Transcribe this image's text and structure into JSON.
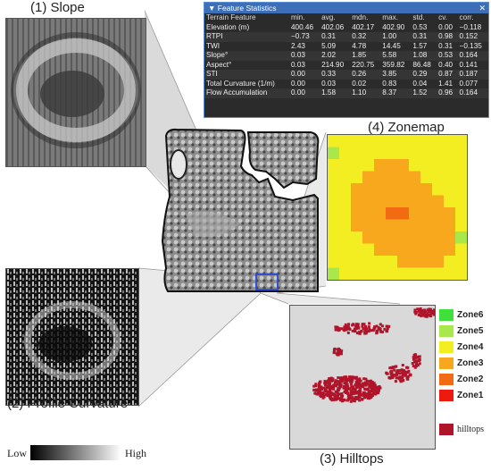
{
  "labels": {
    "slope": "(1) Slope",
    "profile_curvature": "(2) Profile Curvature",
    "hilltops": "(3) Hilltops",
    "zonemap": "(4) Zonemap",
    "scale_low": "Low",
    "scale_high": "High"
  },
  "feature_statistics": {
    "title": "Feature Statistics",
    "collapse_glyph": "▼",
    "close_glyph": "✕",
    "columns": [
      "Terrain Feature",
      "min.",
      "avg.",
      "mdn.",
      "max.",
      "std.",
      "cv.",
      "corr."
    ],
    "rows": [
      [
        "Elevation (m)",
        "400.46",
        "402.06",
        "402.17",
        "402.90",
        "0.53",
        "0.00",
        "−0.118"
      ],
      [
        "RTPI",
        "−0.73",
        "0.31",
        "0.32",
        "1.00",
        "0.31",
        "0.98",
        "0.152"
      ],
      [
        "TWI",
        "2.43",
        "5.09",
        "4.78",
        "14.45",
        "1.57",
        "0.31",
        "−0.135"
      ],
      [
        "Slope°",
        "0.03",
        "2.02",
        "1.85",
        "5.58",
        "1.08",
        "0.53",
        "0.164"
      ],
      [
        "Aspect°",
        "0.03",
        "214.90",
        "220.75",
        "359.82",
        "86.48",
        "0.40",
        "0.141"
      ],
      [
        "STI",
        "0.00",
        "0.33",
        "0.26",
        "3.85",
        "0.29",
        "0.87",
        "0.187"
      ],
      [
        "Total Curvature (1/m)",
        "0.00",
        "0.03",
        "0.02",
        "0.83",
        "0.04",
        "1.41",
        "0.077"
      ],
      [
        "Flow Accumulation",
        "0.00",
        "1.58",
        "1.10",
        "8.37",
        "1.52",
        "0.96",
        "0.164"
      ]
    ]
  },
  "legend": [
    {
      "label": "Zone6",
      "color": "#3fe03a"
    },
    {
      "label": "Zone5",
      "color": "#a8e84a"
    },
    {
      "label": "Zone4",
      "color": "#f3ee22"
    },
    {
      "label": "Zone3",
      "color": "#f7a81c"
    },
    {
      "label": "Zone2",
      "color": "#f26a12"
    },
    {
      "label": "Zone1",
      "color": "#ee1a10"
    },
    {
      "label": "hilltops",
      "color": "#b0142a"
    }
  ]
}
